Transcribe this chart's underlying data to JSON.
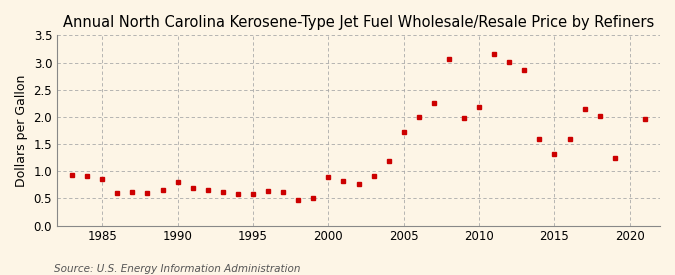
{
  "title": "Annual North Carolina Kerosene-Type Jet Fuel Wholesale/Resale Price by Refiners",
  "ylabel": "Dollars per Gallon",
  "source": "Source: U.S. Energy Information Administration",
  "background_color": "#fdf5e6",
  "marker_color": "#cc0000",
  "years": [
    1983,
    1984,
    1985,
    1986,
    1987,
    1988,
    1989,
    1990,
    1991,
    1992,
    1993,
    1994,
    1995,
    1996,
    1997,
    1998,
    1999,
    2000,
    2001,
    2002,
    2003,
    2004,
    2005,
    2006,
    2007,
    2008,
    2009,
    2010,
    2011,
    2012,
    2013,
    2014,
    2015,
    2016,
    2017,
    2018,
    2019,
    2021
  ],
  "values": [
    0.93,
    0.91,
    0.86,
    0.6,
    0.61,
    0.6,
    0.66,
    0.81,
    0.7,
    0.66,
    0.62,
    0.59,
    0.59,
    0.64,
    0.62,
    0.47,
    0.51,
    0.89,
    0.82,
    0.76,
    0.91,
    1.19,
    1.73,
    2.0,
    2.25,
    3.06,
    1.98,
    2.19,
    3.15,
    3.01,
    2.86,
    1.59,
    1.31,
    1.6,
    2.14,
    2.02,
    1.25,
    1.97
  ],
  "xlim": [
    1982,
    2022
  ],
  "ylim": [
    0.0,
    3.5
  ],
  "yticks": [
    0.0,
    0.5,
    1.0,
    1.5,
    2.0,
    2.5,
    3.0,
    3.5
  ],
  "xticks": [
    1985,
    1990,
    1995,
    2000,
    2005,
    2010,
    2015,
    2020
  ],
  "grid_color": "#aaaaaa",
  "title_fontsize": 10.5,
  "label_fontsize": 9,
  "tick_fontsize": 8.5,
  "source_fontsize": 7.5
}
